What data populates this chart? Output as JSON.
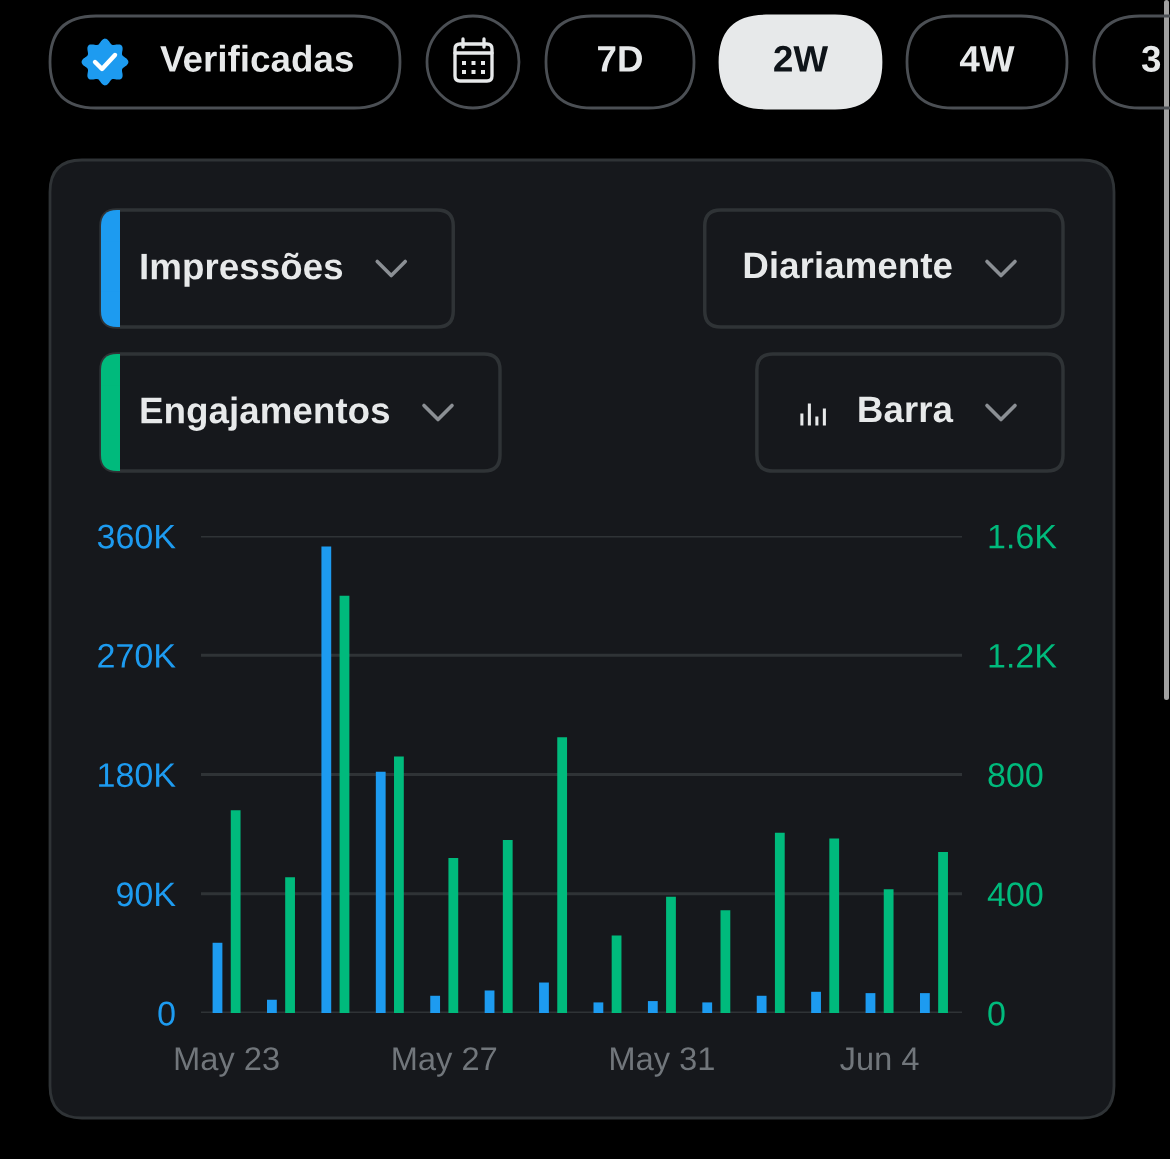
{
  "chart_data": {
    "type": "bar",
    "categories": [
      "May 23",
      null,
      null,
      null,
      "May 27",
      null,
      null,
      null,
      "May 31",
      null,
      null,
      null,
      "Jun 4",
      null
    ],
    "series": [
      {
        "name": "Impressões",
        "color": "#1d9bf0",
        "values": [
          53000,
          10000,
          352000,
          182000,
          13000,
          17000,
          23000,
          8000,
          9000,
          8000,
          13000,
          16000,
          15000,
          15000
        ]
      },
      {
        "name": "Engajamentos",
        "color": "#00ba7c",
        "axis": "y2",
        "values": [
          680,
          455,
          1400,
          860,
          520,
          580,
          925,
          260,
          390,
          345,
          605,
          585,
          415,
          540
        ]
      }
    ],
    "ylim": [
      0,
      360000
    ],
    "yticks": [
      0,
      {
        "value": 90000,
        "label": "90K"
      },
      {
        "value": 180000,
        "label": "180K"
      },
      {
        "value": 270000,
        "label": "270K"
      },
      {
        "value": 360000,
        "label": "360K"
      }
    ],
    "y2lim": [
      0,
      1600
    ],
    "y2ticks": [
      0,
      400,
      800,
      {
        "value": 1200,
        "label": "1.2K"
      },
      {
        "value": 1600,
        "label": "1.6K"
      }
    ],
    "grid": "y",
    "legend": "top left",
    "annotations": [
      "Verificadas",
      "7D",
      "2W",
      "4W",
      "3",
      "Diariamente",
      "Barra"
    ]
  }
}
